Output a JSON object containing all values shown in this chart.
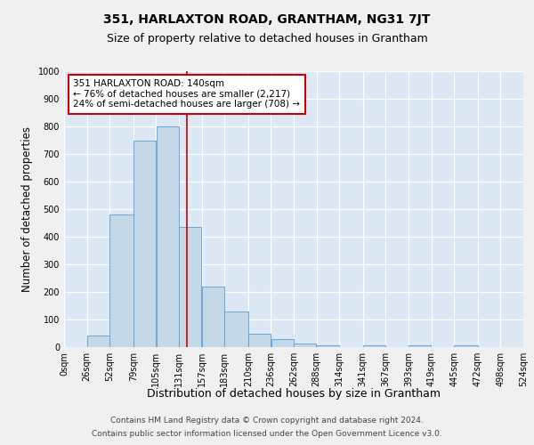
{
  "title": "351, HARLAXTON ROAD, GRANTHAM, NG31 7JT",
  "subtitle": "Size of property relative to detached houses in Grantham",
  "xlabel": "Distribution of detached houses by size in Grantham",
  "ylabel": "Number of detached properties",
  "footer_line1": "Contains HM Land Registry data © Crown copyright and database right 2024.",
  "footer_line2": "Contains public sector information licensed under the Open Government Licence v3.0.",
  "bin_labels": [
    "0sqm",
    "26sqm",
    "52sqm",
    "79sqm",
    "105sqm",
    "131sqm",
    "157sqm",
    "183sqm",
    "210sqm",
    "236sqm",
    "262sqm",
    "288sqm",
    "314sqm",
    "341sqm",
    "367sqm",
    "393sqm",
    "419sqm",
    "445sqm",
    "472sqm",
    "498sqm",
    "524sqm"
  ],
  "bin_edges": [
    0,
    26,
    52,
    79,
    105,
    131,
    157,
    183,
    210,
    236,
    262,
    288,
    314,
    341,
    367,
    393,
    419,
    445,
    472,
    498,
    524
  ],
  "bar_heights": [
    0,
    42,
    480,
    750,
    800,
    435,
    220,
    130,
    50,
    28,
    12,
    8,
    0,
    7,
    0,
    5,
    0,
    8,
    0,
    0
  ],
  "bar_color": "#c5d8e8",
  "bar_edge_color": "#5b9bd5",
  "property_line_x": 140,
  "property_line_color": "#cc0000",
  "ylim": [
    0,
    1000
  ],
  "yticks": [
    0,
    100,
    200,
    300,
    400,
    500,
    600,
    700,
    800,
    900,
    1000
  ],
  "annotation_title": "351 HARLAXTON ROAD: 140sqm",
  "annotation_line1": "← 76% of detached houses are smaller (2,217)",
  "annotation_line2": "24% of semi-detached houses are larger (708) →",
  "annotation_box_color": "#ffffff",
  "annotation_box_edge": "#cc0000",
  "background_color": "#dce9f5",
  "grid_color": "#ffffff",
  "title_fontsize": 10,
  "subtitle_fontsize": 9,
  "axis_label_fontsize": 8.5,
  "tick_fontsize": 7,
  "annotation_fontsize": 7.5,
  "footer_fontsize": 6.5
}
